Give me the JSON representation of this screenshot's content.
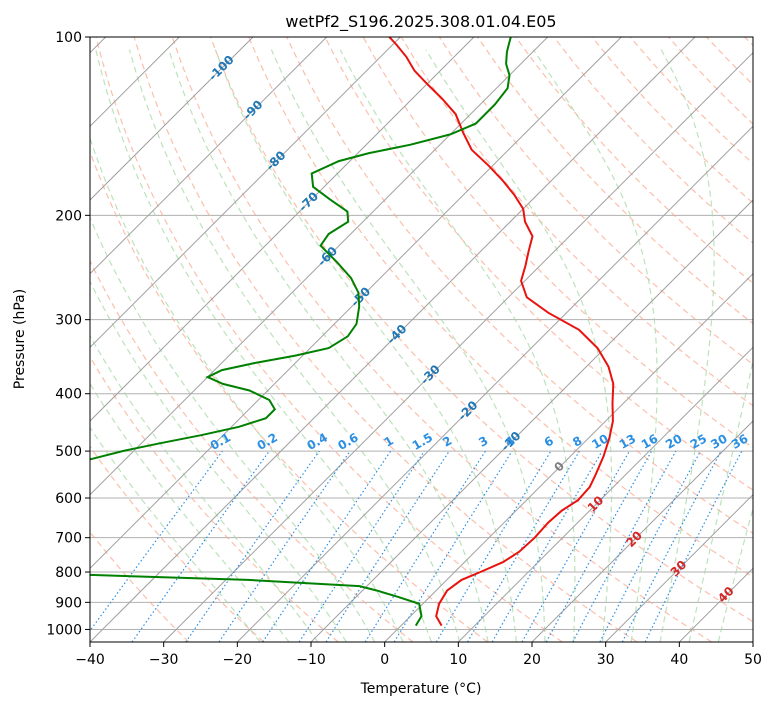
{
  "chart_data": {
    "type": "line",
    "title": "wetPf2_S196.2025.308.01.04.E05",
    "xlabel": "Temperature (°C)",
    "ylabel": "Pressure (hPa)",
    "xlim": [
      -40,
      50
    ],
    "ylim": [
      1050,
      100
    ],
    "y_scale": "log",
    "grid": true,
    "x_ticks": [
      -40,
      -30,
      -20,
      -10,
      0,
      10,
      20,
      30,
      40,
      50
    ],
    "x_tick_labels": [
      "−40",
      "−30",
      "−20",
      "−10",
      "0",
      "10",
      "20",
      "30",
      "40",
      "50"
    ],
    "y_ticks": [
      1000,
      900,
      800,
      700,
      600,
      500,
      400,
      300,
      200,
      100
    ],
    "y_tick_labels": [
      "1000",
      "900",
      "800",
      "700",
      "600",
      "500",
      "400",
      "300",
      "200",
      "100"
    ],
    "skew_lines": [
      -120,
      -110,
      -100,
      -90,
      -80,
      -70,
      -60,
      -50,
      -40,
      -30,
      -20,
      -10,
      0,
      10,
      20,
      30,
      40
    ],
    "isotherm_labels": [
      {
        "text": "-100",
        "t": -100,
        "p": 113
      },
      {
        "text": "-90",
        "t": -90,
        "p": 133
      },
      {
        "text": "-80",
        "t": -80,
        "p": 162
      },
      {
        "text": "-70",
        "t": -70,
        "p": 190
      },
      {
        "text": "-60",
        "t": -60,
        "p": 235
      },
      {
        "text": "-50",
        "t": -50,
        "p": 275
      },
      {
        "text": "-40",
        "t": -40,
        "p": 318
      },
      {
        "text": "-30",
        "t": -30,
        "p": 372
      },
      {
        "text": "-20",
        "t": -20,
        "p": 428
      },
      {
        "text": "-10",
        "t": -10,
        "p": 482
      },
      {
        "text": "0",
        "t": 0,
        "p": 532
      },
      {
        "text": "10",
        "t": 10,
        "p": 615
      },
      {
        "text": "20",
        "t": 20,
        "p": 705
      },
      {
        "text": "30",
        "t": 30,
        "p": 790
      },
      {
        "text": "40",
        "t": 40,
        "p": 875
      }
    ],
    "mixing_ratios": [
      0.1,
      0.2,
      0.4,
      0.6,
      1,
      1.5,
      2,
      3,
      4,
      6,
      8,
      10,
      13,
      16,
      20,
      25,
      30,
      36
    ],
    "mixing_ratio_labels": [
      "0.1",
      "0.2",
      "0.4",
      "0.6",
      "1",
      "1.5",
      "2",
      "3",
      "4",
      "6",
      "8",
      "10",
      "13",
      "16",
      "20",
      "25",
      "30",
      "36"
    ],
    "series": [
      {
        "kind": "temperature",
        "color": "#e8120e",
        "points": [
          [
            5.5,
            985
          ],
          [
            3.5,
            950
          ],
          [
            2.2,
            905
          ],
          [
            1.5,
            860
          ],
          [
            2.0,
            825
          ],
          [
            3.5,
            800
          ],
          [
            5.2,
            770
          ],
          [
            6.0,
            740
          ],
          [
            6.2,
            700
          ],
          [
            6.0,
            660
          ],
          [
            6.2,
            630
          ],
          [
            7.0,
            605
          ],
          [
            6.8,
            575
          ],
          [
            6.0,
            550
          ],
          [
            4.5,
            510
          ],
          [
            2.8,
            475
          ],
          [
            1.0,
            445
          ],
          [
            -1.5,
            415
          ],
          [
            -4.0,
            385
          ],
          [
            -7.0,
            360
          ],
          [
            -11.0,
            335
          ],
          [
            -16.0,
            312
          ],
          [
            -22.5,
            292
          ],
          [
            -27.5,
            275
          ],
          [
            -30.5,
            258
          ],
          [
            -32.0,
            243
          ],
          [
            -33.5,
            230
          ],
          [
            -35.0,
            217
          ],
          [
            -38.0,
            205
          ],
          [
            -40.0,
            195
          ],
          [
            -43.0,
            185
          ],
          [
            -46.5,
            175
          ],
          [
            -50.5,
            165
          ],
          [
            -55.0,
            155
          ],
          [
            -58.5,
            145
          ],
          [
            -62.0,
            135
          ],
          [
            -66.0,
            127
          ],
          [
            -70.0,
            120
          ],
          [
            -73.5,
            114
          ],
          [
            -76.5,
            108
          ],
          [
            -79.5,
            103
          ],
          [
            -81.5,
            100
          ]
        ]
      },
      {
        "kind": "dewpoint",
        "color": "#008000",
        "points": [
          [
            2.0,
            985
          ],
          [
            1.5,
            950
          ],
          [
            -0.5,
            905
          ],
          [
            -4.5,
            880
          ],
          [
            -8.0,
            860
          ],
          [
            -11.0,
            845
          ],
          [
            -27.0,
            825
          ],
          [
            -55.0,
            805
          ],
          [
            -85.0,
            790
          ],
          [
            -110.0,
            780
          ],
          [
            -64.5,
            515
          ],
          [
            -61.5,
            500
          ],
          [
            -57.5,
            485
          ],
          [
            -53.0,
            470
          ],
          [
            -49.0,
            455
          ],
          [
            -46.5,
            440
          ],
          [
            -46.5,
            425
          ],
          [
            -48.5,
            410
          ],
          [
            -52.5,
            395
          ],
          [
            -57.0,
            385
          ],
          [
            -60.0,
            375
          ],
          [
            -59.0,
            365
          ],
          [
            -55.5,
            355
          ],
          [
            -51.0,
            345
          ],
          [
            -47.5,
            335
          ],
          [
            -46.5,
            320
          ],
          [
            -47.0,
            305
          ],
          [
            -49.0,
            285
          ],
          [
            -51.0,
            270
          ],
          [
            -54.0,
            255
          ],
          [
            -58.0,
            240
          ],
          [
            -62.5,
            225
          ],
          [
            -63.0,
            215
          ],
          [
            -62.0,
            205
          ],
          [
            -63.5,
            197
          ],
          [
            -67.5,
            188
          ],
          [
            -71.5,
            179
          ],
          [
            -73.5,
            170
          ],
          [
            -71.5,
            162
          ],
          [
            -68.5,
            157
          ],
          [
            -64.0,
            152
          ],
          [
            -60.0,
            146
          ],
          [
            -58.0,
            140
          ],
          [
            -58.0,
            130
          ],
          [
            -58.5,
            122
          ],
          [
            -60.0,
            116
          ],
          [
            -62.0,
            111
          ],
          [
            -63.5,
            106
          ],
          [
            -64.5,
            102
          ],
          [
            -65.0,
            100
          ]
        ]
      }
    ]
  },
  "colors": {
    "temperature": "#e8120e",
    "dewpoint": "#008000",
    "dry_adiabat": "#fbaa90",
    "moist_adiabat": "#a6d8a6",
    "mixing_ratio": "#2b8fe4",
    "isotherm_label": "#1f77b4",
    "skew_line": "#a0a0a0",
    "grid": "#b0b0b0"
  }
}
